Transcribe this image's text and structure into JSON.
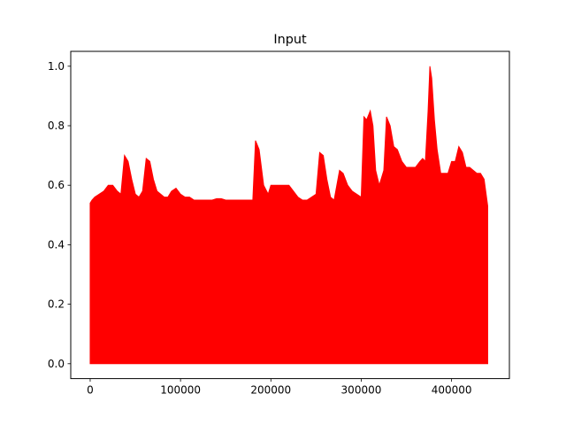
{
  "chart_data": {
    "type": "area",
    "title": "Input",
    "xlabel": "",
    "ylabel": "",
    "xlim": [
      -21500,
      464000
    ],
    "ylim": [
      -0.05,
      1.05
    ],
    "x_ticks": [
      {
        "value": 0,
        "label": "0"
      },
      {
        "value": 100000,
        "label": "100000"
      },
      {
        "value": 200000,
        "label": "200000"
      },
      {
        "value": 300000,
        "label": "300000"
      },
      {
        "value": 400000,
        "label": "400000"
      }
    ],
    "y_ticks": [
      {
        "value": 0.0,
        "label": "0.0"
      },
      {
        "value": 0.2,
        "label": "0.2"
      },
      {
        "value": 0.4,
        "label": "0.4"
      },
      {
        "value": 0.6,
        "label": "0.6"
      },
      {
        "value": 0.8,
        "label": "0.8"
      },
      {
        "value": 1.0,
        "label": "1.0"
      }
    ],
    "grid": false,
    "series": [
      {
        "color": "#ff0000",
        "x": [
          0,
          2000,
          5000,
          10000,
          15000,
          20000,
          25000,
          30000,
          34000,
          38000,
          42000,
          46000,
          50000,
          54000,
          58000,
          62000,
          66000,
          70000,
          74000,
          78000,
          82000,
          86000,
          90000,
          95000,
          100000,
          105000,
          110000,
          115000,
          120000,
          125000,
          130000,
          135000,
          140000,
          145000,
          150000,
          155000,
          160000,
          165000,
          170000,
          175000,
          180000,
          183000,
          187000,
          192000,
          197000,
          200000,
          205000,
          210000,
          215000,
          220000,
          225000,
          230000,
          235000,
          240000,
          245000,
          250000,
          254000,
          258000,
          262000,
          266000,
          270000,
          273000,
          276000,
          280000,
          285000,
          290000,
          295000,
          300000,
          303000,
          306000,
          310000,
          313000,
          316000,
          320000,
          325000,
          328000,
          332000,
          336000,
          340000,
          345000,
          350000,
          355000,
          360000,
          365000,
          368000,
          371000,
          374000,
          376000,
          378000,
          381000,
          384000,
          388000,
          392000,
          396000,
          400000,
          404000,
          408000,
          412000,
          416000,
          420000,
          424000,
          428000,
          432000,
          436000,
          440000
        ],
        "y_max": [
          0.54,
          0.55,
          0.56,
          0.57,
          0.58,
          0.6,
          0.6,
          0.58,
          0.57,
          0.7,
          0.68,
          0.62,
          0.57,
          0.56,
          0.58,
          0.69,
          0.68,
          0.62,
          0.58,
          0.57,
          0.56,
          0.56,
          0.58,
          0.59,
          0.57,
          0.56,
          0.56,
          0.55,
          0.55,
          0.55,
          0.55,
          0.55,
          0.555,
          0.555,
          0.55,
          0.55,
          0.55,
          0.55,
          0.55,
          0.55,
          0.55,
          0.75,
          0.72,
          0.6,
          0.57,
          0.6,
          0.6,
          0.6,
          0.6,
          0.6,
          0.58,
          0.56,
          0.55,
          0.55,
          0.56,
          0.57,
          0.71,
          0.7,
          0.62,
          0.56,
          0.55,
          0.6,
          0.65,
          0.64,
          0.6,
          0.58,
          0.57,
          0.56,
          0.83,
          0.82,
          0.85,
          0.8,
          0.65,
          0.6,
          0.65,
          0.83,
          0.8,
          0.73,
          0.72,
          0.68,
          0.66,
          0.66,
          0.66,
          0.68,
          0.69,
          0.68,
          0.85,
          1.0,
          0.96,
          0.82,
          0.72,
          0.64,
          0.64,
          0.64,
          0.68,
          0.68,
          0.73,
          0.71,
          0.66,
          0.66,
          0.65,
          0.64,
          0.64,
          0.62,
          0.53
        ],
        "y_min": 0.0
      }
    ]
  }
}
